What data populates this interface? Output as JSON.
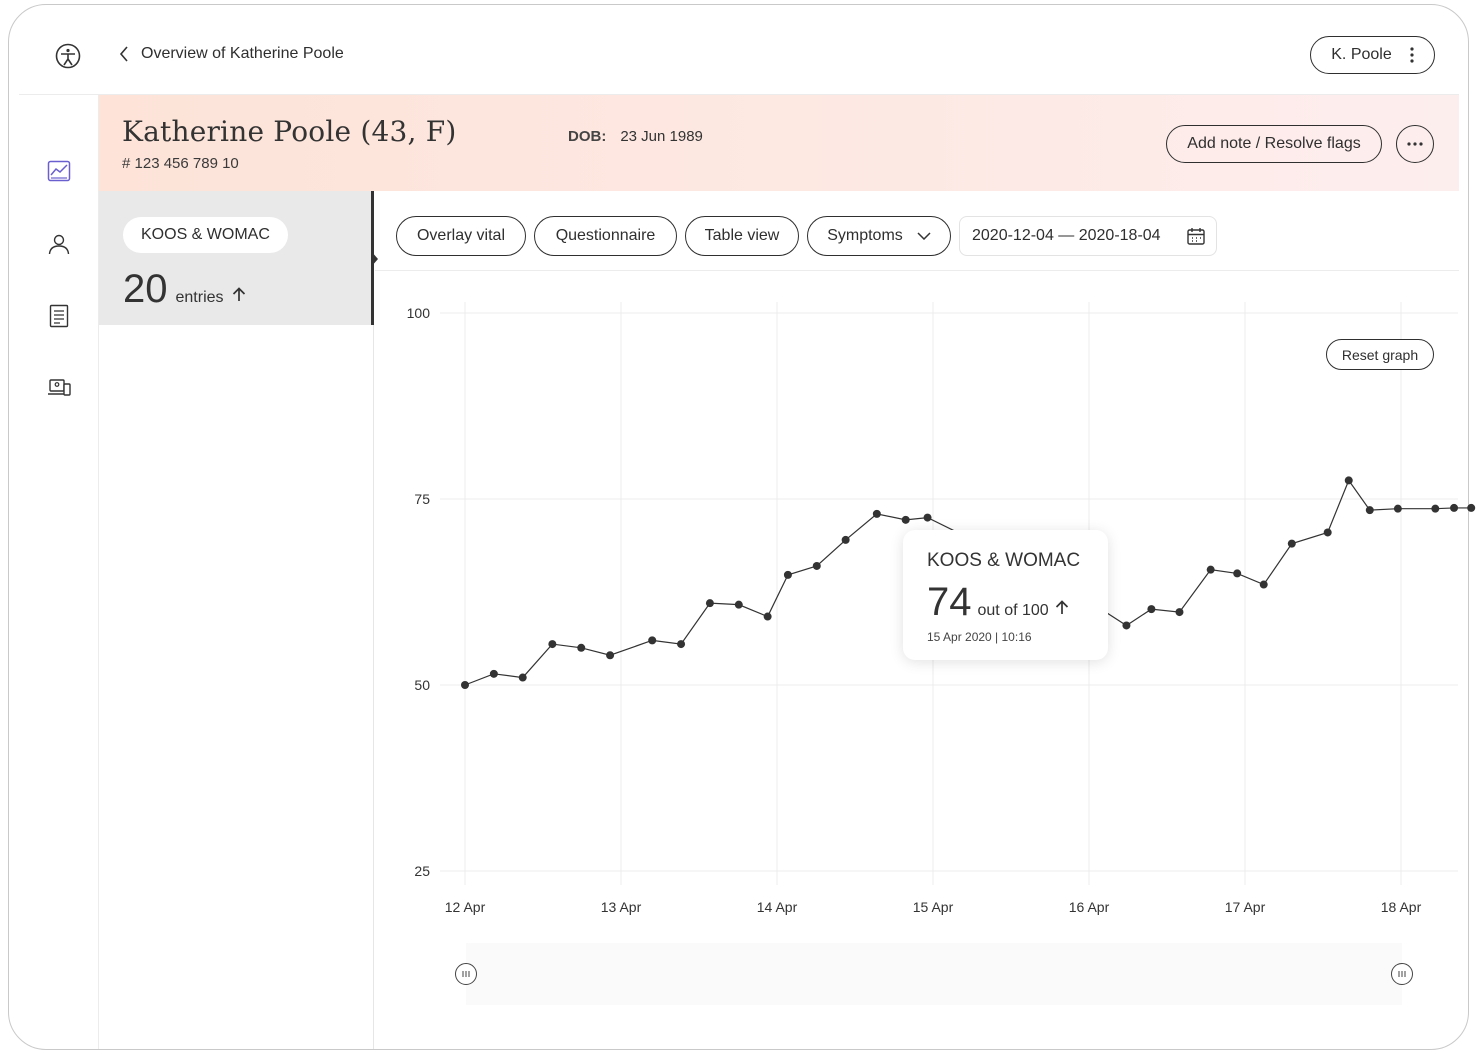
{
  "topbar": {
    "back_label": "Overview of Katherine Poole",
    "user_label": "K. Poole"
  },
  "patient": {
    "name": "Katherine Poole (43, F)",
    "id": "# 123 456 789 10",
    "dob_label": "DOB:",
    "dob_value": "23 Jun 1989",
    "note_button": "Add note / Resolve flags"
  },
  "metric": {
    "tag": "KOOS & WOMAC",
    "count": "20",
    "unit": "entries"
  },
  "filters": {
    "overlay": "Overlay vital",
    "questionnaire": "Questionnaire",
    "table": "Table view",
    "symptoms": "Symptoms",
    "daterange": "2020-12-04 — 2020-18-04"
  },
  "chart": {
    "reset_label": "Reset graph"
  },
  "tooltip": {
    "title": "KOOS & WOMAC",
    "value": "74",
    "unit": "out of 100",
    "date": "15 Apr 2020 | 10:16"
  },
  "chart_data": {
    "type": "line",
    "title": "",
    "xlabel": "",
    "ylabel": "",
    "ylim": [
      25,
      100
    ],
    "yticks": [
      25,
      50,
      75,
      100
    ],
    "xticks": [
      "12 Apr",
      "13 Apr",
      "14 Apr",
      "15 Apr",
      "16 Apr",
      "17 Apr",
      "18 Apr"
    ],
    "grid": true,
    "series": [
      {
        "x": [
          0,
          0.185,
          0.37,
          0.56,
          0.745,
          0.93,
          1.2,
          1.385,
          1.57,
          1.755,
          1.94,
          2.07,
          2.255,
          2.44,
          2.64,
          2.825,
          2.965,
          3.4,
          3.51,
          3.685,
          3.87,
          4.055,
          4.24,
          4.4,
          4.58,
          4.78,
          4.95,
          5.12,
          5.3,
          5.53,
          5.665,
          5.8,
          5.98,
          6.22,
          6.34,
          6.45
        ],
        "y": [
          50,
          51.5,
          51,
          55.5,
          55,
          54,
          56,
          55.5,
          61,
          60.8,
          59.2,
          64.8,
          66,
          69.5,
          73,
          72.2,
          72.5,
          68,
          67,
          63.5,
          62.5,
          60.5,
          58,
          60.2,
          59.8,
          65.5,
          65,
          63.5,
          69,
          70.5,
          77.5,
          73.5,
          73.7,
          73.7,
          73.8,
          73.8
        ]
      }
    ]
  }
}
